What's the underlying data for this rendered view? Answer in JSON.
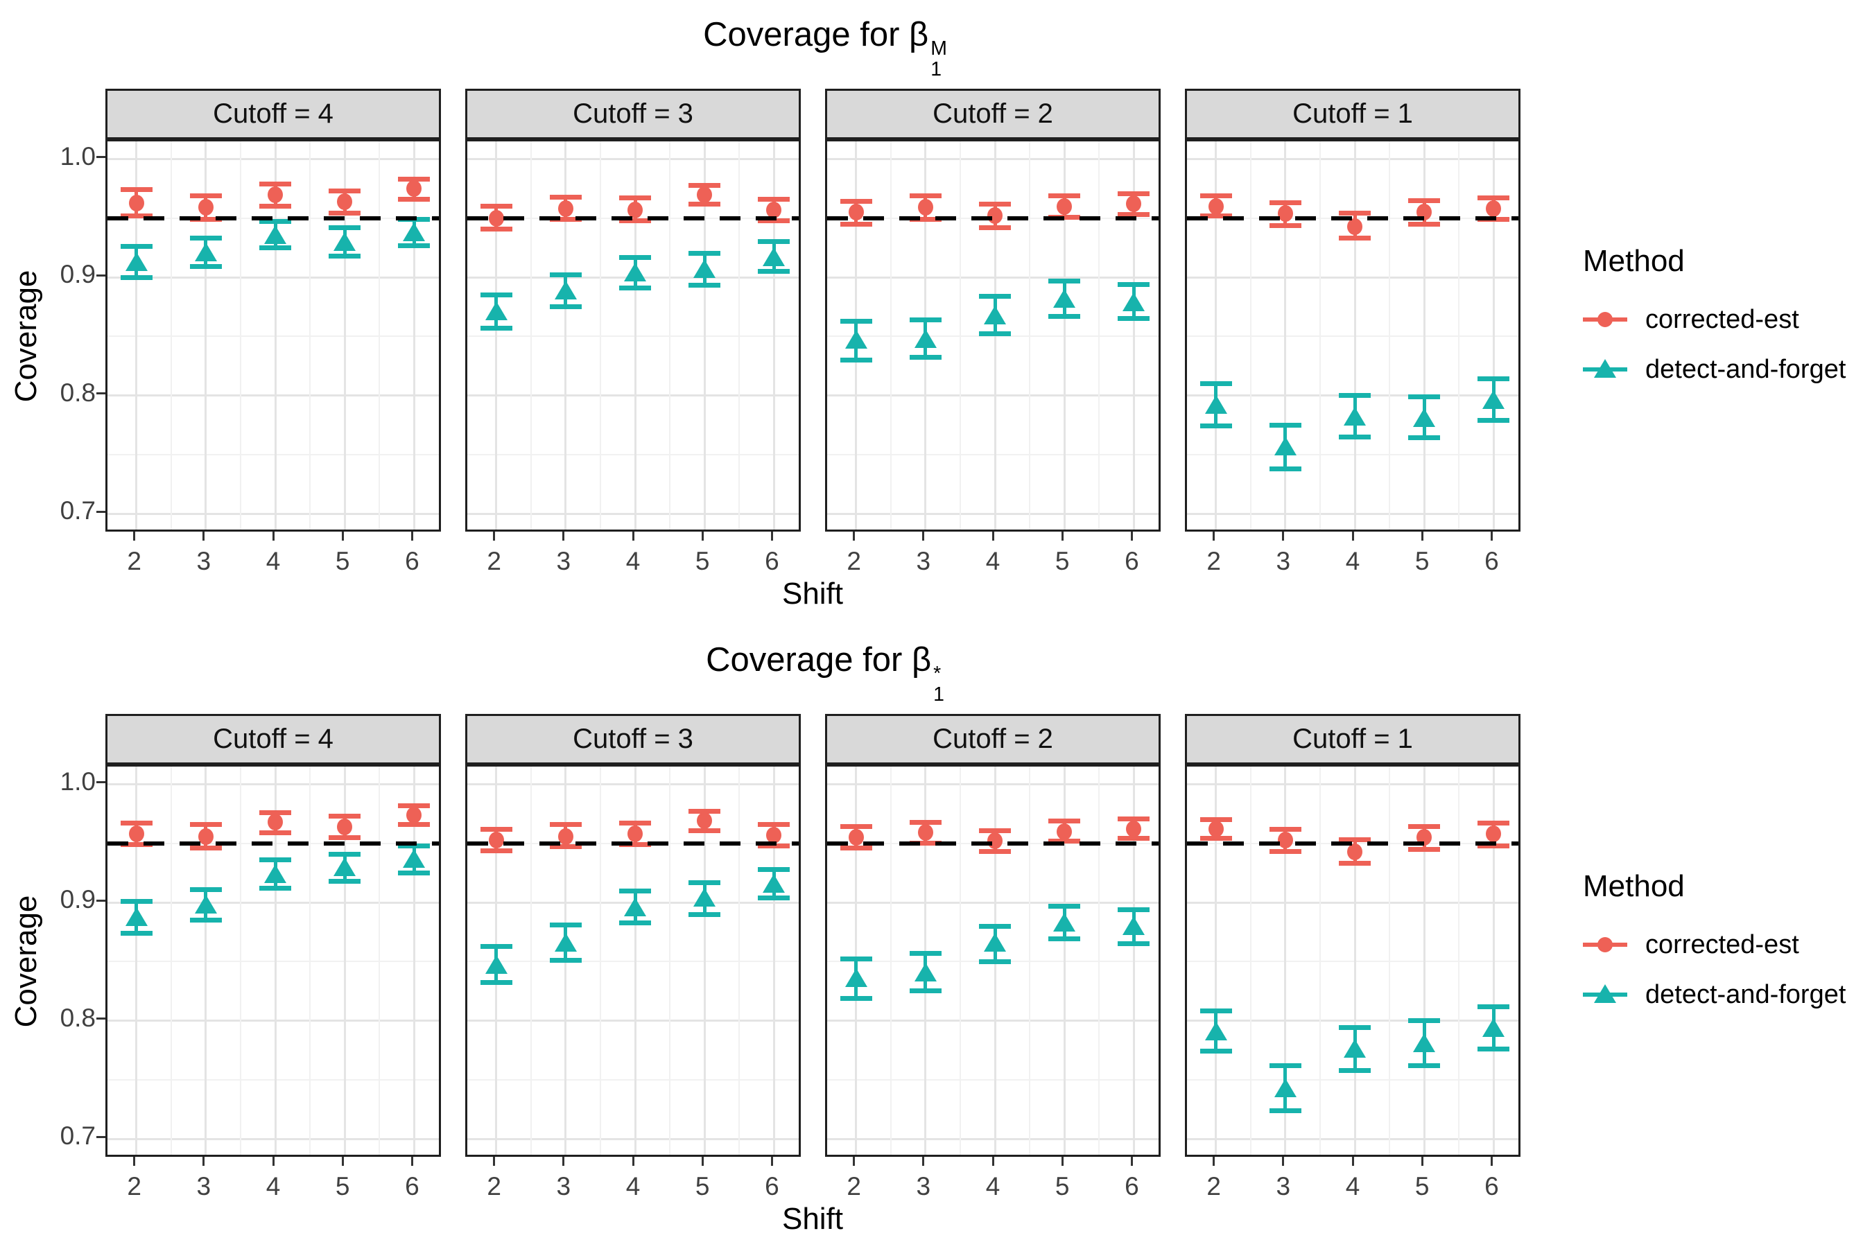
{
  "styles": {
    "colors": {
      "corrected-est": "#ee6156",
      "detect-and-forget": "#17b3ac"
    },
    "reference_line_color": "#000000",
    "strip_background": "#d9d9d9",
    "major_grid": "#e4e4e4",
    "minor_grid": "#f1f1f1"
  },
  "chart_data": [
    {
      "type": "scatter-errorbar",
      "title": "Coverage for β1^M",
      "title_parts": {
        "prefix": "Coverage for ",
        "symbol": "β",
        "subscript": "1",
        "superscript": "M"
      },
      "xlabel": "Shift",
      "ylabel": "Coverage",
      "x_ticks": [
        "2",
        "3",
        "4",
        "5",
        "6"
      ],
      "y_ticks": [
        "1.0",
        "0.9",
        "0.8",
        "0.7"
      ],
      "y_major": [
        0.7,
        0.8,
        0.9,
        1.0
      ],
      "y_minor": [
        0.75,
        0.85,
        0.95
      ],
      "ylim": [
        0.683,
        1.015
      ],
      "ref_line": 0.95,
      "legend": {
        "title": "Method",
        "items": [
          "corrected-est",
          "detect-and-forget"
        ]
      },
      "facets": [
        {
          "label": "Cutoff = 4",
          "series": [
            {
              "name": "corrected-est",
              "marker": "circle",
              "x": [
                2,
                3,
                4,
                5,
                6
              ],
              "mean": [
                0.963,
                0.959,
                0.97,
                0.964,
                0.975
              ],
              "lo": [
                0.952,
                0.949,
                0.96,
                0.954,
                0.966
              ],
              "hi": [
                0.974,
                0.969,
                0.979,
                0.973,
                0.983
              ]
            },
            {
              "name": "detect-and-forget",
              "marker": "triangle",
              "x": [
                2,
                3,
                4,
                5,
                6
              ],
              "mean": [
                0.913,
                0.921,
                0.936,
                0.93,
                0.938
              ],
              "lo": [
                0.9,
                0.909,
                0.925,
                0.918,
                0.927
              ],
              "hi": [
                0.926,
                0.933,
                0.947,
                0.942,
                0.949
              ]
            }
          ]
        },
        {
          "label": "Cutoff = 3",
          "series": [
            {
              "name": "corrected-est",
              "marker": "circle",
              "x": [
                2,
                3,
                4,
                5,
                6
              ],
              "mean": [
                0.95,
                0.958,
                0.957,
                0.97,
                0.957
              ],
              "lo": [
                0.941,
                0.949,
                0.948,
                0.962,
                0.948
              ],
              "hi": [
                0.96,
                0.968,
                0.967,
                0.978,
                0.966
              ]
            },
            {
              "name": "detect-and-forget",
              "marker": "triangle",
              "x": [
                2,
                3,
                4,
                5,
                6
              ],
              "mean": [
                0.871,
                0.889,
                0.904,
                0.907,
                0.917
              ],
              "lo": [
                0.857,
                0.875,
                0.891,
                0.893,
                0.905
              ],
              "hi": [
                0.885,
                0.902,
                0.917,
                0.92,
                0.93
              ]
            }
          ]
        },
        {
          "label": "Cutoff = 2",
          "series": [
            {
              "name": "corrected-est",
              "marker": "circle",
              "x": [
                2,
                3,
                4,
                5,
                6
              ],
              "mean": [
                0.955,
                0.959,
                0.952,
                0.96,
                0.962
              ],
              "lo": [
                0.945,
                0.949,
                0.942,
                0.951,
                0.953
              ],
              "hi": [
                0.964,
                0.969,
                0.962,
                0.969,
                0.971
              ]
            },
            {
              "name": "detect-and-forget",
              "marker": "triangle",
              "x": [
                2,
                3,
                4,
                5,
                6
              ],
              "mean": [
                0.847,
                0.848,
                0.868,
                0.882,
                0.879
              ],
              "lo": [
                0.83,
                0.832,
                0.852,
                0.867,
                0.865
              ],
              "hi": [
                0.863,
                0.864,
                0.884,
                0.897,
                0.894
              ]
            }
          ]
        },
        {
          "label": "Cutoff = 1",
          "series": [
            {
              "name": "corrected-est",
              "marker": "circle",
              "x": [
                2,
                3,
                4,
                5,
                6
              ],
              "mean": [
                0.96,
                0.954,
                0.943,
                0.955,
                0.958
              ],
              "lo": [
                0.952,
                0.944,
                0.933,
                0.945,
                0.949
              ],
              "hi": [
                0.969,
                0.963,
                0.954,
                0.965,
                0.967
              ]
            },
            {
              "name": "detect-and-forget",
              "marker": "triangle",
              "x": [
                2,
                3,
                4,
                5,
                6
              ],
              "mean": [
                0.792,
                0.757,
                0.782,
                0.781,
                0.796
              ],
              "lo": [
                0.774,
                0.738,
                0.765,
                0.764,
                0.779
              ],
              "hi": [
                0.81,
                0.775,
                0.8,
                0.799,
                0.814
              ]
            }
          ]
        }
      ]
    },
    {
      "type": "scatter-errorbar",
      "title": "Coverage for β1^*",
      "title_parts": {
        "prefix": "Coverage for ",
        "symbol": "β",
        "subscript": "1",
        "superscript": "*"
      },
      "xlabel": "Shift",
      "ylabel": "Coverage",
      "x_ticks": [
        "2",
        "3",
        "4",
        "5",
        "6"
      ],
      "y_ticks": [
        "1.0",
        "0.9",
        "0.8",
        "0.7"
      ],
      "y_major": [
        0.7,
        0.8,
        0.9,
        1.0
      ],
      "y_minor": [
        0.75,
        0.85,
        0.95
      ],
      "ylim": [
        0.683,
        1.015
      ],
      "ref_line": 0.95,
      "legend": {
        "title": "Method",
        "items": [
          "corrected-est",
          "detect-and-forget"
        ]
      },
      "facets": [
        {
          "label": "Cutoff = 4",
          "series": [
            {
              "name": "corrected-est",
              "marker": "circle",
              "x": [
                2,
                3,
                4,
                5,
                6
              ],
              "mean": [
                0.958,
                0.956,
                0.968,
                0.964,
                0.974
              ],
              "lo": [
                0.949,
                0.946,
                0.959,
                0.955,
                0.966
              ],
              "hi": [
                0.967,
                0.966,
                0.976,
                0.973,
                0.982
              ]
            },
            {
              "name": "detect-and-forget",
              "marker": "triangle",
              "x": [
                2,
                3,
                4,
                5,
                6
              ],
              "mean": [
                0.888,
                0.898,
                0.924,
                0.93,
                0.937
              ],
              "lo": [
                0.874,
                0.885,
                0.912,
                0.918,
                0.925
              ],
              "hi": [
                0.901,
                0.911,
                0.936,
                0.941,
                0.948
              ]
            }
          ]
        },
        {
          "label": "Cutoff = 3",
          "series": [
            {
              "name": "corrected-est",
              "marker": "circle",
              "x": [
                2,
                3,
                4,
                5,
                6
              ],
              "mean": [
                0.953,
                0.956,
                0.958,
                0.969,
                0.957
              ],
              "lo": [
                0.944,
                0.947,
                0.949,
                0.961,
                0.948
              ],
              "hi": [
                0.962,
                0.966,
                0.967,
                0.977,
                0.966
              ]
            },
            {
              "name": "detect-and-forget",
              "marker": "triangle",
              "x": [
                2,
                3,
                4,
                5,
                6
              ],
              "mean": [
                0.847,
                0.866,
                0.896,
                0.904,
                0.916
              ],
              "lo": [
                0.832,
                0.851,
                0.883,
                0.89,
                0.904
              ],
              "hi": [
                0.863,
                0.881,
                0.91,
                0.917,
                0.928
              ]
            }
          ]
        },
        {
          "label": "Cutoff = 2",
          "series": [
            {
              "name": "corrected-est",
              "marker": "circle",
              "x": [
                2,
                3,
                4,
                5,
                6
              ],
              "mean": [
                0.955,
                0.959,
                0.952,
                0.96,
                0.962
              ],
              "lo": [
                0.946,
                0.95,
                0.943,
                0.952,
                0.954
              ],
              "hi": [
                0.964,
                0.968,
                0.961,
                0.969,
                0.971
              ]
            },
            {
              "name": "detect-and-forget",
              "marker": "triangle",
              "x": [
                2,
                3,
                4,
                5,
                6
              ],
              "mean": [
                0.836,
                0.841,
                0.866,
                0.883,
                0.88
              ],
              "lo": [
                0.819,
                0.825,
                0.85,
                0.869,
                0.865
              ],
              "hi": [
                0.852,
                0.857,
                0.88,
                0.897,
                0.894
              ]
            }
          ]
        },
        {
          "label": "Cutoff = 1",
          "series": [
            {
              "name": "corrected-est",
              "marker": "circle",
              "x": [
                2,
                3,
                4,
                5,
                6
              ],
              "mean": [
                0.962,
                0.953,
                0.943,
                0.955,
                0.958
              ],
              "lo": [
                0.954,
                0.943,
                0.933,
                0.945,
                0.948
              ],
              "hi": [
                0.97,
                0.962,
                0.953,
                0.964,
                0.967
              ]
            },
            {
              "name": "detect-and-forget",
              "marker": "triangle",
              "x": [
                2,
                3,
                4,
                5,
                6
              ],
              "mean": [
                0.791,
                0.743,
                0.776,
                0.781,
                0.794
              ],
              "lo": [
                0.774,
                0.724,
                0.758,
                0.762,
                0.776
              ],
              "hi": [
                0.808,
                0.762,
                0.794,
                0.8,
                0.812
              ]
            }
          ]
        }
      ]
    }
  ]
}
